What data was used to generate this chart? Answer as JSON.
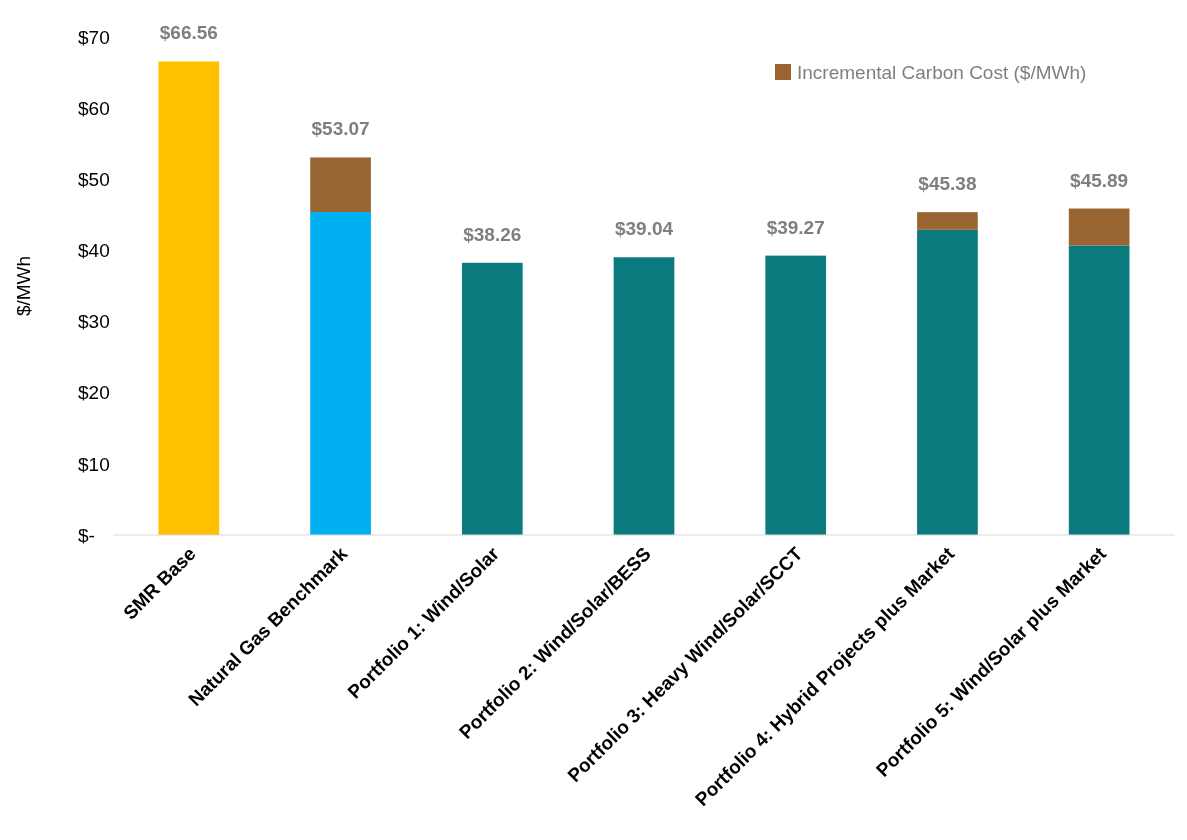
{
  "chart_data": {
    "type": "bar",
    "stacked": true,
    "ylabel": "$/MWh",
    "categories": [
      "SMR Base",
      "Natural Gas Benchmark",
      "Portfolio 1: Wind/Solar",
      "Portfolio 2: Wind/Solar/BESS",
      "Portfolio 3: Heavy Wind/Solar/SCCT",
      "Portfolio 4: Hybrid Projects plus Market",
      "Portfolio 5: Wind/Solar plus Market"
    ],
    "series": [
      {
        "colors": [
          "#ffc000",
          "#00b0f0",
          "#0b7a7e",
          "#0b7a7e",
          "#0b7a7e",
          "#0b7a7e",
          "#0b7a7e"
        ],
        "values": [
          66.56,
          45.4,
          38.26,
          39.04,
          39.27,
          42.9,
          40.7
        ]
      },
      {
        "name": "Incremental Carbon Cost ($/MWh)",
        "color": "#996633",
        "values": [
          null,
          7.67,
          null,
          null,
          null,
          2.48,
          5.19
        ]
      }
    ],
    "totals": [
      "$66.56",
      "$53.07",
      "$38.26",
      "$39.04",
      "$39.27",
      "$45.38",
      "$45.89"
    ],
    "ylim": [
      0,
      70
    ],
    "yticks": [
      {
        "value": 0,
        "label": "$-"
      },
      {
        "value": 10,
        "label": "$10"
      },
      {
        "value": 20,
        "label": "$20"
      },
      {
        "value": 30,
        "label": "$30"
      },
      {
        "value": 40,
        "label": "$40"
      },
      {
        "value": 50,
        "label": "$50"
      },
      {
        "value": 60,
        "label": "$60"
      },
      {
        "value": 70,
        "label": "$70"
      }
    ],
    "grid": false,
    "legend": "top right"
  }
}
